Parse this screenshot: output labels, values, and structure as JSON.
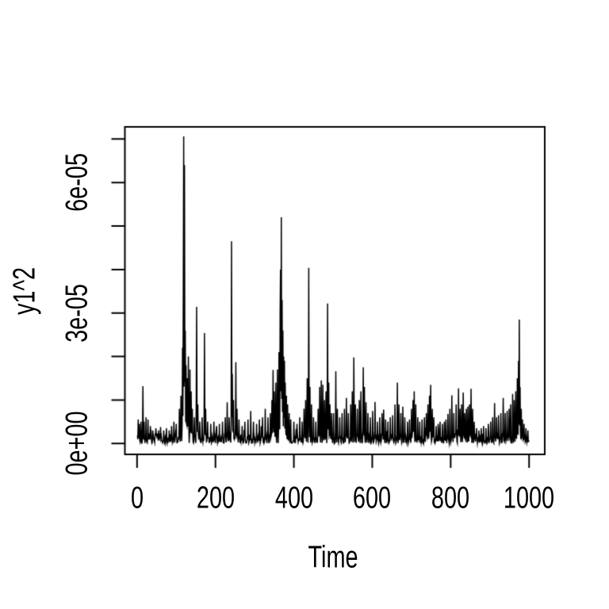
{
  "chart_data": {
    "type": "line",
    "title": "",
    "xlabel": "Time",
    "ylabel": "y1^2",
    "x_tick_labels": [
      "0",
      "200",
      "400",
      "600",
      "800",
      "1000"
    ],
    "x_tick_values": [
      0,
      200,
      400,
      600,
      800,
      1000
    ],
    "y_tick_labels": [
      "0e+00",
      "3e-05",
      "6e-05"
    ],
    "y_tick_values": [
      0,
      3e-05,
      6e-05
    ],
    "y_minor_tick_values": [
      1e-05,
      2e-05,
      4e-05,
      5e-05,
      7e-05
    ],
    "xlim": [
      -31,
      1040
    ],
    "ylim": [
      -2.5e-06,
      7.28e-05
    ],
    "n_points": 1000,
    "grid": false,
    "legend": null,
    "line_color": "#000000",
    "background_color": "#ffffff",
    "seed": 7,
    "baseline_max": 3.2e-06,
    "peaks": [
      [
        3,
        5.5e-06
      ],
      [
        6,
        4.5e-06
      ],
      [
        10,
        5e-06
      ],
      [
        15,
        1.32e-05
      ],
      [
        18,
        5e-06
      ],
      [
        23,
        6e-06
      ],
      [
        28,
        5.5e-06
      ],
      [
        34,
        4e-06
      ],
      [
        40,
        3e-06
      ],
      [
        48,
        3.5e-06
      ],
      [
        55,
        3e-06
      ],
      [
        60,
        3.8e-06
      ],
      [
        68,
        3e-06
      ],
      [
        75,
        3.5e-06
      ],
      [
        82,
        3e-06
      ],
      [
        88,
        4e-06
      ],
      [
        94,
        5e-06
      ],
      [
        100,
        4.5e-06
      ],
      [
        108,
        8e-06
      ],
      [
        112,
        1.1e-05
      ],
      [
        116,
        2.2e-05
      ],
      [
        118,
        3.6e-05
      ],
      [
        119,
        7.06e-05
      ],
      [
        121,
        6.4e-05
      ],
      [
        123,
        2.6e-05
      ],
      [
        125,
        1.8e-05
      ],
      [
        128,
        1.5e-05
      ],
      [
        131,
        2e-05
      ],
      [
        135,
        1.7e-05
      ],
      [
        138,
        1.2e-05
      ],
      [
        141,
        8e-06
      ],
      [
        146,
        6e-06
      ],
      [
        152,
        3.14e-05
      ],
      [
        155,
        9e-06
      ],
      [
        160,
        5e-06
      ],
      [
        166,
        6e-06
      ],
      [
        172,
        2.54e-05
      ],
      [
        175,
        8e-06
      ],
      [
        180,
        5e-06
      ],
      [
        188,
        4.5e-06
      ],
      [
        196,
        5e-06
      ],
      [
        203,
        4e-06
      ],
      [
        210,
        4.5e-06
      ],
      [
        218,
        5e-06
      ],
      [
        225,
        6e-06
      ],
      [
        230,
        9.5e-06
      ],
      [
        235,
        6e-06
      ],
      [
        241,
        4.65e-05
      ],
      [
        243,
        1.6e-05
      ],
      [
        246,
        1e-05
      ],
      [
        252,
        1.87e-05
      ],
      [
        255,
        8e-06
      ],
      [
        260,
        5.5e-06
      ],
      [
        268,
        4e-06
      ],
      [
        275,
        5e-06
      ],
      [
        283,
        5.5e-06
      ],
      [
        290,
        7.5e-06
      ],
      [
        297,
        5e-06
      ],
      [
        305,
        4.5e-06
      ],
      [
        312,
        5.5e-06
      ],
      [
        320,
        6e-06
      ],
      [
        327,
        8e-06
      ],
      [
        334,
        6e-06
      ],
      [
        340,
        7e-06
      ],
      [
        344,
        1e-05
      ],
      [
        347,
        1.69e-05
      ],
      [
        350,
        1.2e-05
      ],
      [
        354,
        1.4e-05
      ],
      [
        358,
        1.7e-05
      ],
      [
        362,
        2.1e-05
      ],
      [
        365,
        3e-05
      ],
      [
        366,
        4e-05
      ],
      [
        368,
        5.2e-05
      ],
      [
        370,
        3.3e-05
      ],
      [
        372,
        2.6e-05
      ],
      [
        374,
        2e-05
      ],
      [
        376,
        1.9e-05
      ],
      [
        378,
        1.4e-05
      ],
      [
        381,
        1.1e-05
      ],
      [
        384,
        9e-06
      ],
      [
        388,
        7e-06
      ],
      [
        392,
        5.5e-06
      ],
      [
        400,
        5e-06
      ],
      [
        408,
        4.5e-06
      ],
      [
        415,
        6e-06
      ],
      [
        421,
        5e-06
      ],
      [
        426,
        8e-06
      ],
      [
        430,
        1e-05
      ],
      [
        434,
        1.5e-05
      ],
      [
        438,
        4.04e-05
      ],
      [
        441,
        1.3e-05
      ],
      [
        445,
        9e-06
      ],
      [
        450,
        6e-06
      ],
      [
        456,
        5e-06
      ],
      [
        462,
        8e-06
      ],
      [
        466,
        1.3e-05
      ],
      [
        470,
        1.45e-05
      ],
      [
        474,
        1.35e-05
      ],
      [
        478,
        1e-05
      ],
      [
        482,
        1.2e-05
      ],
      [
        486,
        3.22e-05
      ],
      [
        489,
        1.4e-05
      ],
      [
        492,
        9e-06
      ],
      [
        496,
        7e-06
      ],
      [
        501,
        7e-06
      ],
      [
        507,
        1.66e-05
      ],
      [
        511,
        8e-06
      ],
      [
        517,
        6e-06
      ],
      [
        523,
        7e-06
      ],
      [
        529,
        8e-06
      ],
      [
        534,
        1.05e-05
      ],
      [
        539,
        7e-06
      ],
      [
        545,
        9e-06
      ],
      [
        549,
        1.2e-05
      ],
      [
        553,
        1.98e-05
      ],
      [
        557,
        9e-06
      ],
      [
        562,
        8e-06
      ],
      [
        567,
        1e-05
      ],
      [
        571,
        1.2e-05
      ],
      [
        577,
        1.75e-05
      ],
      [
        580,
        1.3e-05
      ],
      [
        584,
        9.5e-06
      ],
      [
        589,
        7e-06
      ],
      [
        595,
        6e-06
      ],
      [
        601,
        7.5e-06
      ],
      [
        607,
        9.6e-06
      ],
      [
        613,
        5e-06
      ],
      [
        619,
        6e-06
      ],
      [
        625,
        7e-06
      ],
      [
        629,
        7.8e-06
      ],
      [
        634,
        5.5e-06
      ],
      [
        640,
        5e-06
      ],
      [
        646,
        6e-06
      ],
      [
        652,
        6.5e-06
      ],
      [
        658,
        9e-06
      ],
      [
        664,
        1.4e-05
      ],
      [
        668,
        9e-06
      ],
      [
        673,
        7e-06
      ],
      [
        678,
        8.5e-06
      ],
      [
        683,
        6e-06
      ],
      [
        690,
        5e-06
      ],
      [
        695,
        5.5e-06
      ],
      [
        700,
        8e-06
      ],
      [
        704,
        1e-05
      ],
      [
        707,
        1.2e-05
      ],
      [
        711,
        9e-06
      ],
      [
        716,
        6e-06
      ],
      [
        721,
        5e-06
      ],
      [
        727,
        5.5e-06
      ],
      [
        733,
        6e-06
      ],
      [
        738,
        7e-06
      ],
      [
        742,
        9e-06
      ],
      [
        746,
        1.1e-05
      ],
      [
        749,
        1.35e-05
      ],
      [
        753,
        8e-06
      ],
      [
        757,
        6e-06
      ],
      [
        763,
        4e-06
      ],
      [
        768,
        4.5e-06
      ],
      [
        773,
        5e-06
      ],
      [
        779,
        4.5e-06
      ],
      [
        784,
        5e-06
      ],
      [
        788,
        5.5e-06
      ],
      [
        793,
        6.8e-06
      ],
      [
        798,
        8e-06
      ],
      [
        803,
        1.11e-05
      ],
      [
        808,
        7e-06
      ],
      [
        814,
        9e-06
      ],
      [
        820,
        1.27e-05
      ],
      [
        824,
        8e-06
      ],
      [
        828,
        9e-06
      ],
      [
        832,
        1.17e-05
      ],
      [
        836,
        7e-06
      ],
      [
        840,
        8e-06
      ],
      [
        844,
        8.5e-06
      ],
      [
        848,
        9e-06
      ],
      [
        852,
        1.26e-05
      ],
      [
        856,
        8e-06
      ],
      [
        860,
        5e-06
      ],
      [
        866,
        3.5e-06
      ],
      [
        872,
        3e-06
      ],
      [
        878,
        3.5e-06
      ],
      [
        884,
        4e-06
      ],
      [
        890,
        3.5e-06
      ],
      [
        896,
        4.5e-06
      ],
      [
        902,
        5e-06
      ],
      [
        907,
        6e-06
      ],
      [
        912,
        9.3e-06
      ],
      [
        917,
        6e-06
      ],
      [
        922,
        6.5e-06
      ],
      [
        928,
        7e-06
      ],
      [
        934,
        1.05e-05
      ],
      [
        939,
        7e-06
      ],
      [
        944,
        7.5e-06
      ],
      [
        949,
        8e-06
      ],
      [
        953,
        9e-06
      ],
      [
        958,
        1.14e-05
      ],
      [
        962,
        1e-05
      ],
      [
        966,
        1.2e-05
      ],
      [
        970,
        1.5e-05
      ],
      [
        973,
        1.9e-05
      ],
      [
        975,
        2.85e-05
      ],
      [
        977,
        1.3e-05
      ],
      [
        980,
        8e-06
      ],
      [
        983,
        5.5e-06
      ],
      [
        987,
        4.5e-06
      ],
      [
        992,
        3.5e-06
      ],
      [
        997,
        3e-06
      ]
    ]
  }
}
